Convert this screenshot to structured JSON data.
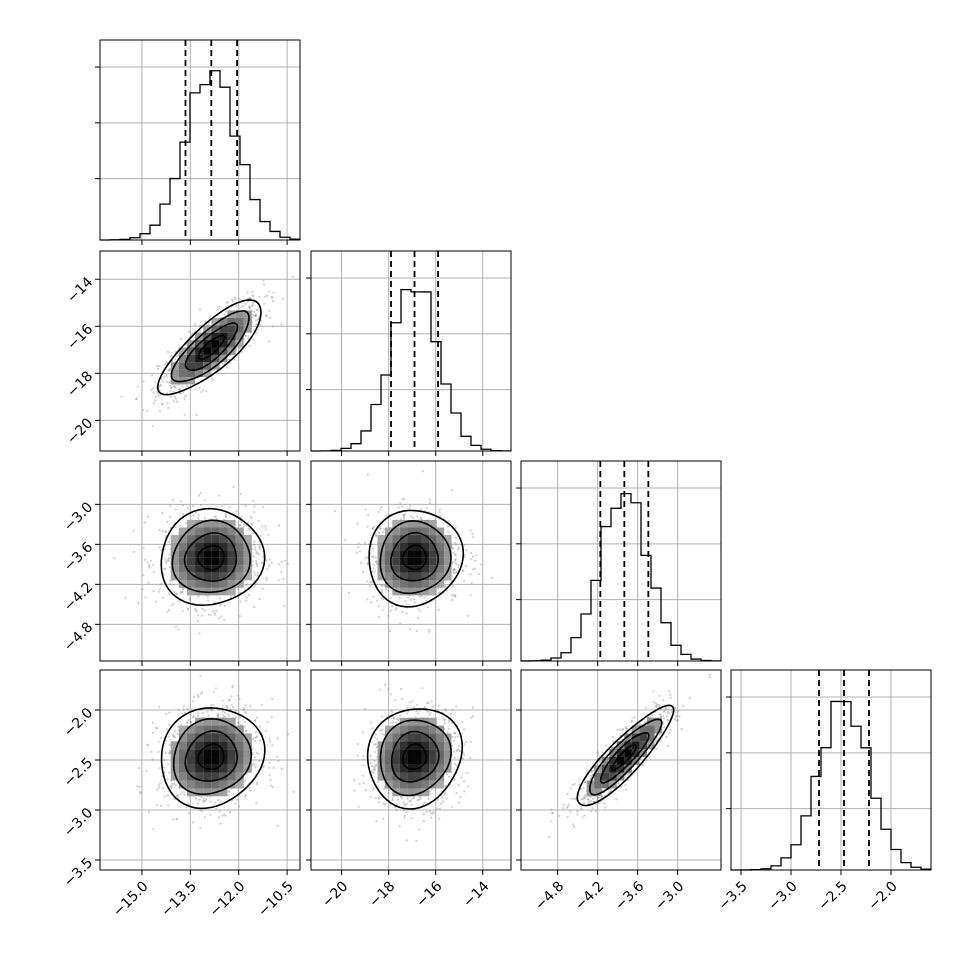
{
  "chart_data": {
    "type": "corner",
    "grid": true,
    "parameters": [
      {
        "range": [
          -16.3,
          -10.1
        ],
        "mean": -12.85,
        "sigma": 0.8,
        "quantiles": [
          -13.65,
          -12.85,
          -12.05
        ],
        "ticks": [
          -15.0,
          -13.5,
          -12.0,
          -10.5
        ],
        "tick_labels": [
          "−15.0",
          "−13.5",
          "−12.0",
          "−10.5"
        ],
        "hist_yticks": [
          0.33,
          0.63,
          0.93
        ]
      },
      {
        "range": [
          -21.3,
          -12.8
        ],
        "mean": -16.9,
        "sigma": 1.0,
        "quantiles": [
          -17.9,
          -16.9,
          -15.9
        ],
        "ticks": [
          -20,
          -18,
          -16,
          -14
        ],
        "tick_labels": [
          "−20",
          "−18",
          "−16",
          "−14"
        ],
        "hist_yticks": [
          0.33,
          0.63,
          0.93
        ]
      },
      {
        "range": [
          -5.35,
          -2.35
        ],
        "mean": -3.8,
        "sigma": 0.36,
        "quantiles": [
          -4.16,
          -3.8,
          -3.44
        ],
        "ticks": [
          -4.8,
          -4.2,
          -3.6,
          -3.0
        ],
        "tick_labels": [
          "−4.8",
          "−4.2",
          "−3.6",
          "−3.0"
        ],
        "hist_yticks": [
          0.33,
          0.63,
          0.93
        ]
      },
      {
        "range": [
          -3.6,
          -1.6
        ],
        "mean": -2.47,
        "sigma": 0.25,
        "quantiles": [
          -2.72,
          -2.47,
          -2.22
        ],
        "ticks": [
          -3.5,
          -3.0,
          -2.5,
          -2.0
        ],
        "tick_labels": [
          "−3.5",
          "−3.0",
          "−2.5",
          "−2.0"
        ],
        "hist_yticks": [
          0.33,
          0.63,
          0.93
        ]
      }
    ],
    "correlations": [
      [
        1.0,
        0.8,
        0.05,
        0.1
      ],
      [
        0.8,
        1.0,
        0.05,
        0.1
      ],
      [
        0.05,
        0.05,
        1.0,
        0.88
      ],
      [
        0.1,
        0.1,
        0.88,
        1.0
      ]
    ],
    "contour_levels_sigma": [
      0.5,
      1.0,
      1.5,
      2.0
    ],
    "samples_scatter_count": 900
  }
}
